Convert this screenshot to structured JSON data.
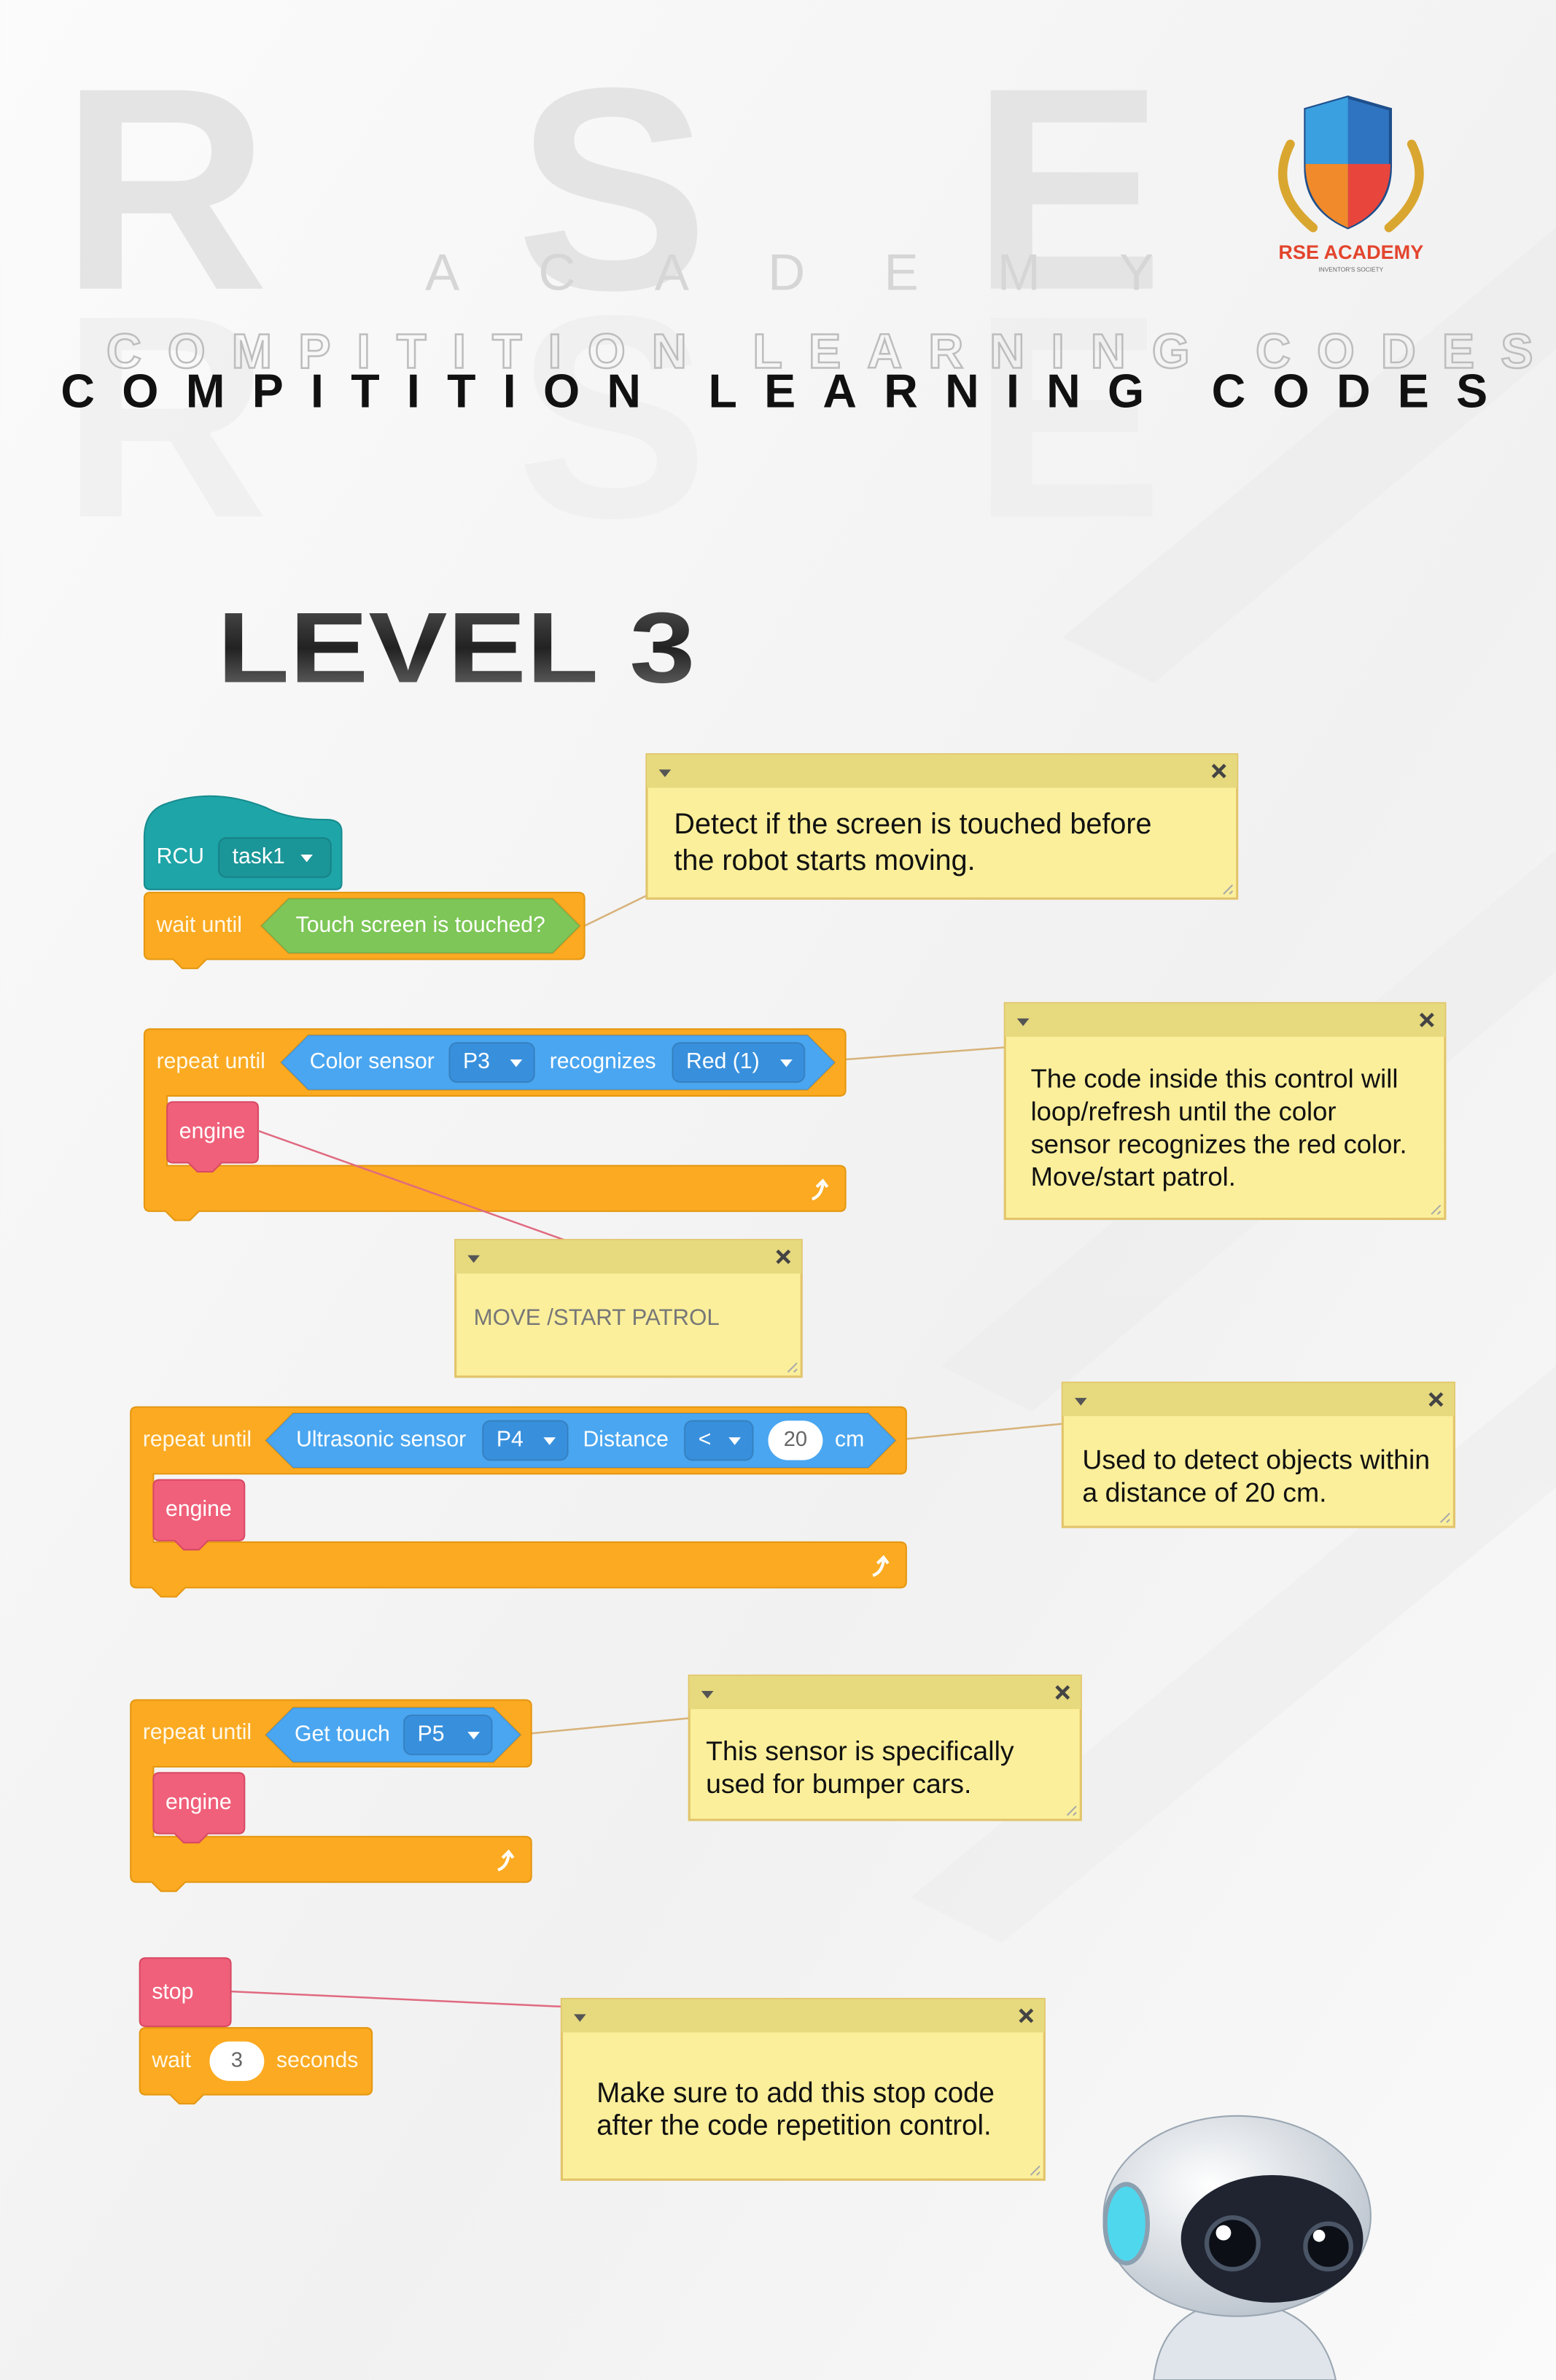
{
  "header": {
    "watermark": [
      "R",
      "S",
      "E"
    ],
    "watermark_subtitle": "ACADEMY",
    "title": "COMPITITION LEARNING CODES",
    "level": "LEVEL 3"
  },
  "logo": {
    "name": "RSE ACADEMY",
    "tagline": "INVENTOR'S SOCIETY"
  },
  "blocks": [
    {
      "hat": "RCU",
      "task": "task1",
      "wait": "wait until",
      "condition": "Touch screen is touched?"
    },
    {
      "control": "repeat until",
      "sensor": "Color sensor",
      "port": "P3",
      "relation": "recognizes",
      "color": "Red (1)",
      "body": "engine"
    },
    {
      "control": "repeat until",
      "sensor": "Ultrasonic sensor",
      "port": "P4",
      "measure": "Distance",
      "operator": "<",
      "distance": "20",
      "unit": "cm",
      "body": "engine"
    },
    {
      "control": "repeat until",
      "sensor": "Get touch",
      "port": "P5",
      "body": "engine"
    },
    {
      "stop": "stop",
      "wait": "wait",
      "duration": "3",
      "unit": "seconds"
    }
  ],
  "notes": [
    {
      "lines": [
        "Detect if the screen is touched before",
        "the robot starts moving."
      ]
    },
    {
      "lines": [
        "The code inside this control will",
        "loop/refresh until the color",
        "sensor recognizes the red color.",
        "Move/start patrol."
      ]
    },
    {
      "lines": [
        "MOVE /START PATROL"
      ]
    },
    {
      "lines": [
        "Used to detect objects within",
        "a distance of 20 cm."
      ]
    },
    {
      "lines": [
        "This sensor is specifically",
        "used for bumper cars."
      ]
    },
    {
      "lines": [
        "Make sure to add this stop code",
        "after the code repetition control."
      ]
    }
  ]
}
